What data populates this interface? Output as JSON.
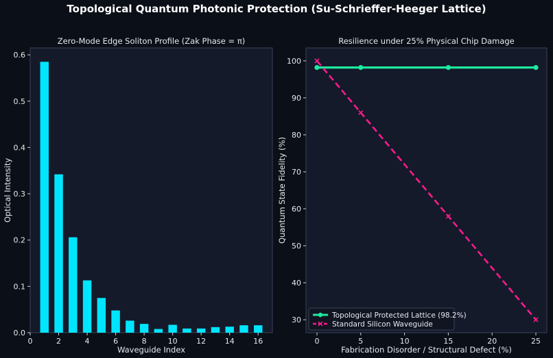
{
  "figure_title": "Topological Quantum Photonic Protection (Su-Schrieffer-Heeger Lattice)",
  "colors": {
    "background": "#0b0f17",
    "panel": "#141a2a",
    "bar": "#00e5ff",
    "topological": "#1de9a0",
    "standard": "#ff1a8c"
  },
  "chart_data": [
    {
      "type": "bar",
      "title": "Zero-Mode Edge Soliton Profile (Zak Phase = π)",
      "xlabel": "Waveguide Index",
      "ylabel": "Optical Intensity",
      "x": [
        1,
        2,
        3,
        4,
        5,
        6,
        7,
        8,
        9,
        10,
        11,
        12,
        13,
        14,
        15,
        16
      ],
      "values": [
        0.585,
        0.342,
        0.206,
        0.113,
        0.075,
        0.048,
        0.026,
        0.019,
        0.008,
        0.017,
        0.009,
        0.009,
        0.012,
        0.013,
        0.016,
        0.016
      ],
      "xlim": [
        0,
        17
      ],
      "ylim": [
        0,
        0.615
      ],
      "xticks": [
        "0",
        "2",
        "4",
        "6",
        "8",
        "10",
        "12",
        "14",
        "16"
      ],
      "yticks": [
        "0.0",
        "0.1",
        "0.2",
        "0.3",
        "0.4",
        "0.5",
        "0.6"
      ],
      "grid": false
    },
    {
      "type": "line",
      "title": "Resilience under 25% Physical Chip Damage",
      "xlabel": "Fabrication Disorder / Structural Defect (%)",
      "ylabel": "Quantum State Fidelity (%)",
      "xlim": [
        -1.25,
        26.25
      ],
      "ylim": [
        26.5,
        103.5
      ],
      "xticks": [
        "0",
        "5",
        "10",
        "15",
        "20",
        "25"
      ],
      "yticks": [
        "30",
        "40",
        "50",
        "60",
        "70",
        "80",
        "90",
        "100"
      ],
      "legend_position": "lower-left",
      "grid": false,
      "series": [
        {
          "name": "Topological Protected Lattice (98.2%)",
          "x": [
            0,
            5,
            15,
            25
          ],
          "y": [
            98.2,
            98.2,
            98.2,
            98.2
          ],
          "marker": "circle",
          "style": "solid"
        },
        {
          "name": "Standard Silicon Waveguide",
          "x": [
            0,
            5,
            15,
            25
          ],
          "y": [
            100,
            86,
            58,
            30
          ],
          "marker": "x",
          "style": "dashed"
        }
      ]
    }
  ]
}
